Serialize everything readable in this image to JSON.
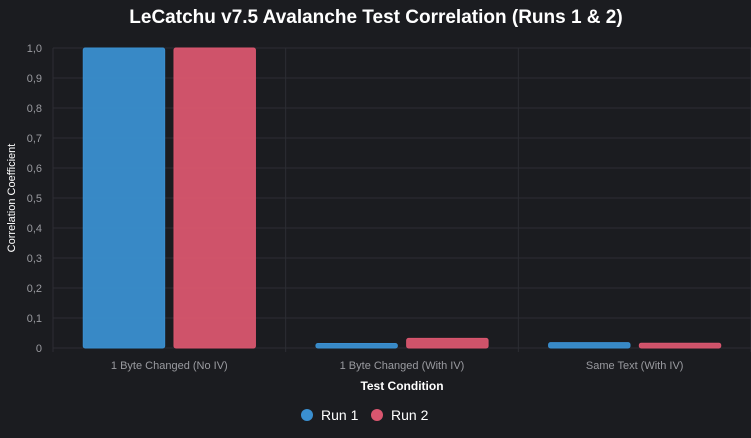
{
  "chart_data": {
    "type": "bar",
    "title": "LeCatchu v7.5 Avalanche Test Correlation (Runs 1 & 2)",
    "xlabel": "Test Condition",
    "ylabel": "Correlation Coefficient",
    "categories": [
      "1 Byte Changed (No IV)",
      "1 Byte Changed (With IV)",
      "Same Text (With IV)"
    ],
    "series": [
      {
        "name": "Run 1",
        "color": "#3a8fd0",
        "values": [
          1.0,
          0.015,
          0.018
        ]
      },
      {
        "name": "Run 2",
        "color": "#d9566f",
        "values": [
          1.0,
          0.032,
          0.016
        ]
      }
    ],
    "ylim": [
      0,
      1.0
    ],
    "yticks": [
      "0",
      "0,1",
      "0,2",
      "0,3",
      "0,4",
      "0,5",
      "0,6",
      "0,7",
      "0,8",
      "0,9",
      "1,0"
    ],
    "grid": true,
    "legend_position": "bottom"
  },
  "colors": {
    "background": "#1b1c20",
    "grid": "#2c2d33",
    "text": "#ffffff",
    "tick_text": "#9a9ba0"
  }
}
